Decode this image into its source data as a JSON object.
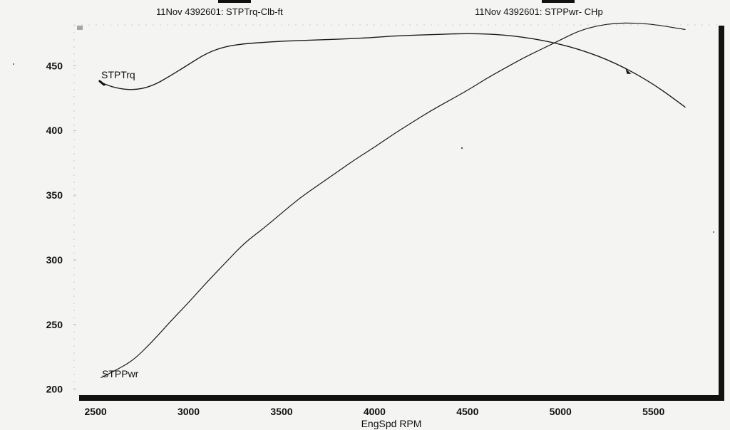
{
  "chart_data": {
    "type": "line",
    "xlabel": "EngSpd  RPM",
    "ylabel": "",
    "xlim": [
      2400,
      5850
    ],
    "ylim": [
      196,
      481
    ],
    "x_ticks": [
      2500,
      3000,
      3500,
      4000,
      4500,
      5000,
      5500
    ],
    "y_ticks": [
      200,
      250,
      300,
      350,
      400,
      450
    ],
    "grid": false,
    "legend_position": "top",
    "series": [
      {
        "name": "STPTrq",
        "legend_label": "11Nov 4392601: STPTrq-Clb-ft",
        "label_on_plot": "STPTrq",
        "points": [
          [
            2530,
            437
          ],
          [
            2600,
            433
          ],
          [
            2700,
            431
          ],
          [
            2800,
            434
          ],
          [
            2900,
            442
          ],
          [
            3000,
            451
          ],
          [
            3100,
            460
          ],
          [
            3200,
            465
          ],
          [
            3300,
            467
          ],
          [
            3400,
            468
          ],
          [
            3500,
            469
          ],
          [
            3700,
            470
          ],
          [
            3900,
            471
          ],
          [
            4100,
            473
          ],
          [
            4300,
            474
          ],
          [
            4500,
            475
          ],
          [
            4700,
            474
          ],
          [
            4900,
            470
          ],
          [
            5100,
            463
          ],
          [
            5300,
            452
          ],
          [
            5500,
            436
          ],
          [
            5670,
            418
          ]
        ]
      },
      {
        "name": "STPPwr",
        "legend_label": "11Nov 4392601: STPPwr- CHp",
        "label_on_plot": "STPPwr",
        "points": [
          [
            2530,
            209
          ],
          [
            2600,
            214
          ],
          [
            2700,
            222
          ],
          [
            2800,
            236
          ],
          [
            2900,
            252
          ],
          [
            3000,
            267
          ],
          [
            3100,
            283
          ],
          [
            3200,
            298
          ],
          [
            3300,
            313
          ],
          [
            3400,
            324
          ],
          [
            3500,
            336
          ],
          [
            3600,
            348
          ],
          [
            3700,
            358
          ],
          [
            3800,
            368
          ],
          [
            3900,
            378
          ],
          [
            4000,
            387
          ],
          [
            4100,
            397
          ],
          [
            4200,
            406
          ],
          [
            4300,
            415
          ],
          [
            4400,
            423
          ],
          [
            4500,
            431
          ],
          [
            4600,
            440
          ],
          [
            4700,
            448
          ],
          [
            4800,
            456
          ],
          [
            4900,
            463
          ],
          [
            5000,
            470
          ],
          [
            5100,
            477
          ],
          [
            5200,
            481
          ],
          [
            5300,
            483
          ],
          [
            5400,
            483
          ],
          [
            5500,
            482
          ],
          [
            5670,
            478
          ]
        ]
      }
    ]
  }
}
